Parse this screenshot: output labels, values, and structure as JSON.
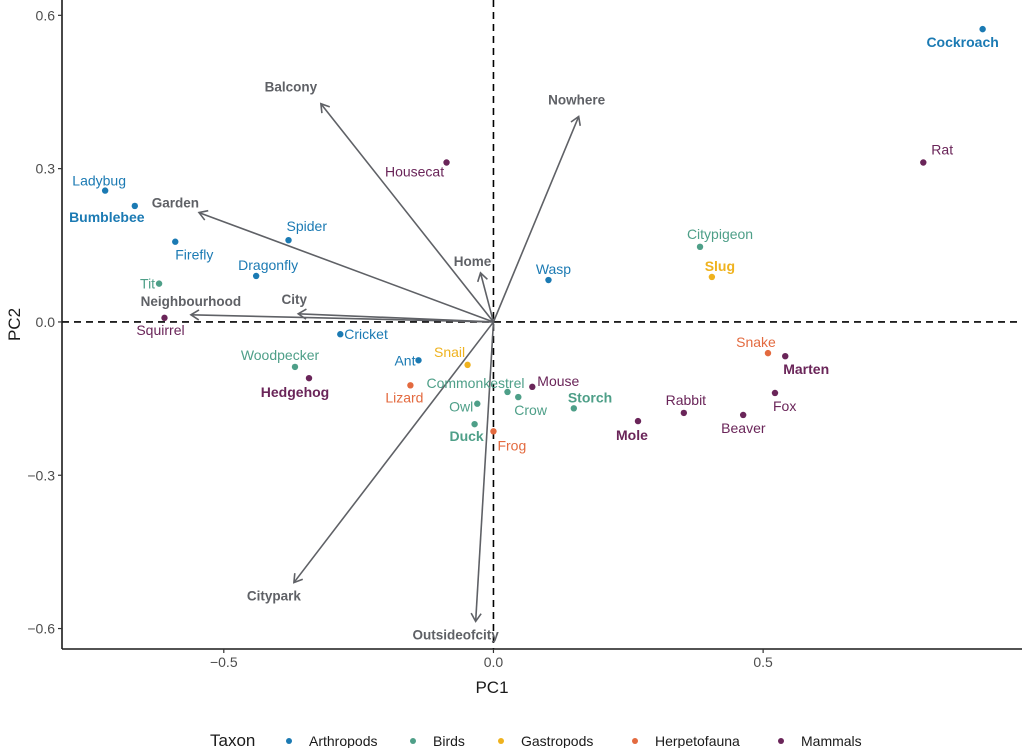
{
  "chart_data": {
    "type": "scatter",
    "subtype": "pca-biplot",
    "title": "",
    "xlabel": "PC1",
    "ylabel": "PC2",
    "xlim": [
      -0.8,
      0.98
    ],
    "ylim": [
      -0.64,
      0.63
    ],
    "x_ticks": [
      {
        "v": -0.5,
        "label": "−0.5"
      },
      {
        "v": 0.0,
        "label": "0.0"
      },
      {
        "v": 0.5,
        "label": "0.5"
      }
    ],
    "y_ticks": [
      {
        "v": 0.6,
        "label": "0.6"
      },
      {
        "v": 0.3,
        "label": "0.3"
      },
      {
        "v": 0.0,
        "label": "0.0"
      },
      {
        "v": -0.3,
        "label": "−0.3"
      },
      {
        "v": -0.6,
        "label": "−0.6"
      }
    ],
    "grid": false,
    "reference_lines": {
      "x": 0,
      "y": 0,
      "style": "dashed"
    },
    "legend": {
      "title": "Taxon",
      "position": "bottom",
      "entries": [
        {
          "name": "Arthropods",
          "color": "#1b7ab3"
        },
        {
          "name": "Birds",
          "color": "#4e9f88"
        },
        {
          "name": "Gastropods",
          "color": "#efb21e"
        },
        {
          "name": "Herpetofauna",
          "color": "#e36a3f"
        },
        {
          "name": "Mammals",
          "color": "#6a2559"
        }
      ]
    },
    "points": [
      {
        "name": "Cockroach",
        "taxon": "Arthropods",
        "x": 0.907,
        "y": 0.573,
        "bold": true,
        "label_pos": "below-left"
      },
      {
        "name": "Rat",
        "taxon": "Mammals",
        "x": 0.797,
        "y": 0.312,
        "bold": false,
        "label_pos": "above-right"
      },
      {
        "name": "Housecat",
        "taxon": "Mammals",
        "x": -0.087,
        "y": 0.312,
        "bold": false,
        "label_pos": "below-left"
      },
      {
        "name": "Ladybug",
        "taxon": "Arthropods",
        "x": -0.72,
        "y": 0.257,
        "bold": false,
        "label_pos": "above"
      },
      {
        "name": "Bumblebee",
        "taxon": "Arthropods",
        "x": -0.665,
        "y": 0.227,
        "bold": true,
        "label_pos": "below-left"
      },
      {
        "name": "Spider",
        "taxon": "Arthropods",
        "x": -0.38,
        "y": 0.16,
        "bold": false,
        "label_pos": "above-right"
      },
      {
        "name": "Firefly",
        "taxon": "Arthropods",
        "x": -0.59,
        "y": 0.157,
        "bold": false,
        "label_pos": "below-right"
      },
      {
        "name": "Citypigeon",
        "taxon": "Birds",
        "x": 0.383,
        "y": 0.147,
        "bold": false,
        "label_pos": "above"
      },
      {
        "name": "Dragonfly",
        "taxon": "Arthropods",
        "x": -0.44,
        "y": 0.09,
        "bold": false,
        "label_pos": "above-right"
      },
      {
        "name": "Slug",
        "taxon": "Gastropods",
        "x": 0.405,
        "y": 0.088,
        "bold": true,
        "label_pos": "above"
      },
      {
        "name": "Wasp",
        "taxon": "Arthropods",
        "x": 0.102,
        "y": 0.082,
        "bold": false,
        "label_pos": "above"
      },
      {
        "name": "Tit",
        "taxon": "Birds",
        "x": -0.62,
        "y": 0.075,
        "bold": false,
        "label_pos": "left"
      },
      {
        "name": "Squirrel",
        "taxon": "Mammals",
        "x": -0.61,
        "y": 0.008,
        "bold": false,
        "label_pos": "below"
      },
      {
        "name": "Cricket",
        "taxon": "Arthropods",
        "x": -0.284,
        "y": -0.024,
        "bold": false,
        "label_pos": "right"
      },
      {
        "name": "Snake",
        "taxon": "Herpetofauna",
        "x": 0.509,
        "y": -0.061,
        "bold": false,
        "label_pos": "above-left"
      },
      {
        "name": "Marten",
        "taxon": "Mammals",
        "x": 0.541,
        "y": -0.067,
        "bold": true,
        "label_pos": "below-right"
      },
      {
        "name": "Ant",
        "taxon": "Arthropods",
        "x": -0.139,
        "y": -0.075,
        "bold": false,
        "label_pos": "left"
      },
      {
        "name": "Snail",
        "taxon": "Gastropods",
        "x": -0.048,
        "y": -0.084,
        "bold": false,
        "label_pos": "above-left"
      },
      {
        "name": "Woodpecker",
        "taxon": "Birds",
        "x": -0.368,
        "y": -0.088,
        "bold": false,
        "label_pos": "above"
      },
      {
        "name": "Hedgehog",
        "taxon": "Mammals",
        "x": -0.342,
        "y": -0.11,
        "bold": true,
        "label_pos": "below"
      },
      {
        "name": "Lizard",
        "taxon": "Herpetofauna",
        "x": -0.154,
        "y": -0.124,
        "bold": false,
        "label_pos": "below"
      },
      {
        "name": "Mouse",
        "taxon": "Mammals",
        "x": 0.072,
        "y": -0.127,
        "bold": false,
        "label_pos": "above-right"
      },
      {
        "name": "Commonkestrel",
        "taxon": "Birds",
        "x": 0.026,
        "y": -0.137,
        "bold": false,
        "label_pos": "above-left"
      },
      {
        "name": "Fox",
        "taxon": "Mammals",
        "x": 0.522,
        "y": -0.139,
        "bold": false,
        "label_pos": "below-right"
      },
      {
        "name": "Crow",
        "taxon": "Birds",
        "x": 0.046,
        "y": -0.147,
        "bold": false,
        "label_pos": "below-right"
      },
      {
        "name": "Owl",
        "taxon": "Birds",
        "x": -0.03,
        "y": -0.16,
        "bold": false,
        "label_pos": "left"
      },
      {
        "name": "Storch",
        "taxon": "Birds",
        "x": 0.149,
        "y": -0.169,
        "bold": true,
        "label_pos": "above-right"
      },
      {
        "name": "Rabbit",
        "taxon": "Mammals",
        "x": 0.353,
        "y": -0.178,
        "bold": false,
        "label_pos": "above"
      },
      {
        "name": "Beaver",
        "taxon": "Mammals",
        "x": 0.463,
        "y": -0.182,
        "bold": false,
        "label_pos": "below"
      },
      {
        "name": "Mole",
        "taxon": "Mammals",
        "x": 0.268,
        "y": -0.194,
        "bold": true,
        "label_pos": "below-left"
      },
      {
        "name": "Duck",
        "taxon": "Birds",
        "x": -0.035,
        "y": -0.2,
        "bold": true,
        "label_pos": "below"
      },
      {
        "name": "Frog",
        "taxon": "Herpetofauna",
        "x": 0.0,
        "y": -0.214,
        "bold": false,
        "label_pos": "below-right"
      }
    ],
    "vectors": [
      {
        "name": "Balcony",
        "x": -0.32,
        "y": 0.427,
        "label_pos": "above"
      },
      {
        "name": "Nowhere",
        "x": 0.158,
        "y": 0.402,
        "label_pos": "above"
      },
      {
        "name": "Garden",
        "x": -0.546,
        "y": 0.214,
        "label_pos": "above-left"
      },
      {
        "name": "Home",
        "x": -0.024,
        "y": 0.096,
        "label_pos": "above-left"
      },
      {
        "name": "Neighbourhood",
        "x": -0.561,
        "y": 0.014,
        "label_pos": "above"
      },
      {
        "name": "City",
        "x": -0.362,
        "y": 0.016,
        "label_pos": "above"
      },
      {
        "name": "Citypark",
        "x": -0.37,
        "y": -0.51,
        "label_pos": "below"
      },
      {
        "name": "Outsideofcity",
        "x": -0.033,
        "y": -0.586,
        "label_pos": "below"
      }
    ]
  }
}
